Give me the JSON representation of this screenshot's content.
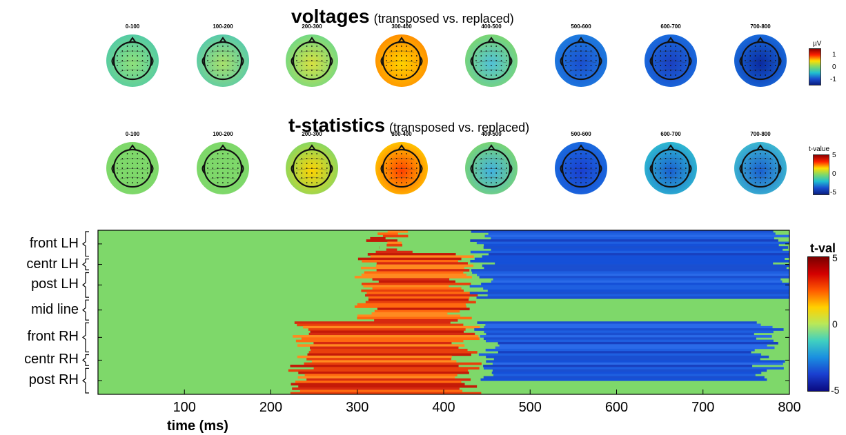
{
  "voltages_title": {
    "main": "voltages",
    "sub": "(transposed vs. replaced)"
  },
  "tstats_title": {
    "main": "t-statistics",
    "sub": "(transposed vs. replaced)"
  },
  "time_windows": [
    "0-100",
    "100-200",
    "200-300",
    "300-400",
    "400-500",
    "500-600",
    "600-700",
    "700-800"
  ],
  "voltage_colorbar": {
    "title": "µV",
    "ticks": [
      "1",
      "0",
      "-1"
    ],
    "range": [
      -1,
      1
    ]
  },
  "tstat_colorbar": {
    "title": "t-value",
    "ticks": [
      "5",
      "0",
      "-5"
    ],
    "range": [
      -5,
      5
    ]
  },
  "heatmap_colorbar": {
    "title": "t-val",
    "ticks": [
      "5",
      "0",
      "-5"
    ],
    "range": [
      -5,
      5
    ]
  },
  "colors": {
    "positive": "#d62a10",
    "neutral": "#7ed86a",
    "negative": "#1a4fd0"
  },
  "chart_data": {
    "type": "heatmap",
    "xlabel": "time (ms)",
    "ylabel": "",
    "xlim": [
      0,
      800
    ],
    "x_ticks": [
      "100",
      "200",
      "300",
      "400",
      "500",
      "600",
      "700",
      "800"
    ],
    "x_tick_values": [
      100,
      200,
      300,
      400,
      500,
      600,
      700,
      800
    ],
    "regions": [
      "front LH",
      "centr LH",
      "post LH",
      "mid line",
      "front RH",
      "centr RH",
      "post RH"
    ],
    "region_rows": [
      [
        0,
        12
      ],
      [
        12,
        18
      ],
      [
        18,
        30
      ],
      [
        30,
        40
      ],
      [
        40,
        54
      ],
      [
        54,
        60
      ],
      [
        60,
        72
      ]
    ],
    "n_rows": 72,
    "clusters": [
      {
        "sign": "positive",
        "t_peak": 4,
        "row_range": [
          0,
          10
        ],
        "time_range": [
          325,
          345
        ]
      },
      {
        "sign": "positive",
        "t_peak": 4,
        "row_range": [
          10,
          40
        ],
        "time_range": [
          310,
          420
        ]
      },
      {
        "sign": "positive",
        "t_peak": 5,
        "row_range": [
          40,
          72
        ],
        "time_range": [
          235,
          425
        ]
      },
      {
        "sign": "negative",
        "t_peak": -5,
        "row_range": [
          0,
          30
        ],
        "time_range": [
          445,
          800
        ]
      },
      {
        "sign": "negative",
        "t_peak": -5,
        "row_range": [
          40,
          66
        ],
        "time_range": [
          450,
          775
        ]
      }
    ]
  }
}
